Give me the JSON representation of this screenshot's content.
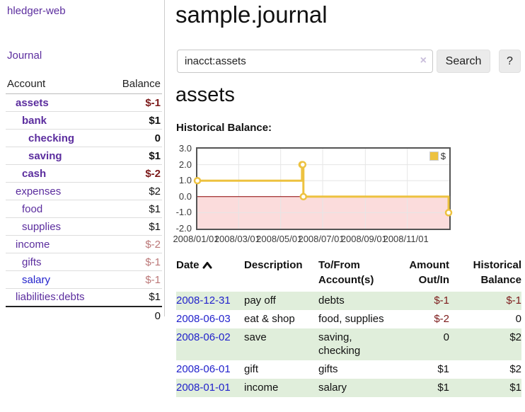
{
  "app_title": "hledger-web",
  "sidebar": {
    "journal_link": "Journal",
    "accounts": {
      "header": {
        "account": "Account",
        "balance": "Balance"
      },
      "rows": [
        {
          "name": "assets",
          "balance": "$-1"
        },
        {
          "name": "bank",
          "balance": "$1"
        },
        {
          "name": "checking",
          "balance": "0"
        },
        {
          "name": "saving",
          "balance": "$1"
        },
        {
          "name": "cash",
          "balance": "$-2"
        },
        {
          "name": "expenses",
          "balance": "$2"
        },
        {
          "name": "food",
          "balance": "$1"
        },
        {
          "name": "supplies",
          "balance": "$1"
        },
        {
          "name": "income",
          "balance": "$-2"
        },
        {
          "name": "gifts",
          "balance": "$-1"
        },
        {
          "name": "salary",
          "balance": "$-1"
        },
        {
          "name": "liabilities:debts",
          "balance": "$1"
        }
      ],
      "total": "0"
    }
  },
  "main": {
    "title": "sample.journal",
    "search": {
      "value": "inacct:assets",
      "clear_icon": "×",
      "search_button": "Search",
      "help_button": "?"
    },
    "section_heading": "assets",
    "chart_label": "Historical Balance:"
  },
  "chart_data": {
    "type": "line",
    "step": true,
    "title": "Historical Balance",
    "legend": [
      {
        "label": "$",
        "color": "#edc240"
      }
    ],
    "series": [
      {
        "name": "$",
        "points": [
          [
            "2008-01-01",
            1
          ],
          [
            "2008-06-01",
            2
          ],
          [
            "2008-06-02",
            2
          ],
          [
            "2008-06-03",
            0
          ],
          [
            "2008-12-31",
            -1
          ]
        ]
      }
    ],
    "xrange": [
      "2008-01-01",
      "2009-01-01"
    ],
    "ylim": [
      -2,
      3
    ],
    "yticks": [
      {
        "v": 3,
        "label": "3.0"
      },
      {
        "v": 2,
        "label": "2.0"
      },
      {
        "v": 1,
        "label": "1.0"
      },
      {
        "v": 0,
        "label": "0.0"
      },
      {
        "v": -1,
        "label": "-1.0"
      },
      {
        "v": -2,
        "label": "-2.0"
      }
    ],
    "xticks": [
      {
        "d": "2008-01-01",
        "label": "2008/01/01"
      },
      {
        "d": "2008-03-01",
        "label": "2008/03/01"
      },
      {
        "d": "2008-05-01",
        "label": "2008/05/01"
      },
      {
        "d": "2008-07-01",
        "label": "2008/07/01"
      },
      {
        "d": "2008-09-01",
        "label": "2008/09/01"
      },
      {
        "d": "2008-11-01",
        "label": "2008/11/01"
      }
    ],
    "grid": true,
    "colors": {
      "line": "#edc240",
      "marker_fill": "#ffffff",
      "zero_line": "#8b0000",
      "negative_region": "#fbdcdc",
      "gridline": "#e6e6e6"
    }
  },
  "register": {
    "headers": {
      "date": "Date",
      "description": "Description",
      "account": "To/From Account(s)",
      "amount": "Amount Out/In",
      "balance": "Historical Balance"
    },
    "rows": [
      {
        "date": "2008-12-31",
        "description": "pay off",
        "account": "debts",
        "amount": "$-1",
        "balance": "$-1"
      },
      {
        "date": "2008-06-03",
        "description": "eat & shop",
        "account": "food, supplies",
        "amount": "$-2",
        "balance": "0"
      },
      {
        "date": "2008-06-02",
        "description": "save",
        "account": "saving, checking",
        "amount": "0",
        "balance": "$2"
      },
      {
        "date": "2008-06-01",
        "description": "gift",
        "account": "gifts",
        "amount": "$1",
        "balance": "$2"
      },
      {
        "date": "2008-01-01",
        "description": "income",
        "account": "salary",
        "amount": "$1",
        "balance": "$1"
      }
    ]
  },
  "colors": {
    "accent_purple": "#5b2d9e",
    "link_blue": "#2222cc",
    "negative_dark": "#7c1a1a",
    "negative_light": "#bb7777",
    "row_green": "#e0eedb"
  }
}
